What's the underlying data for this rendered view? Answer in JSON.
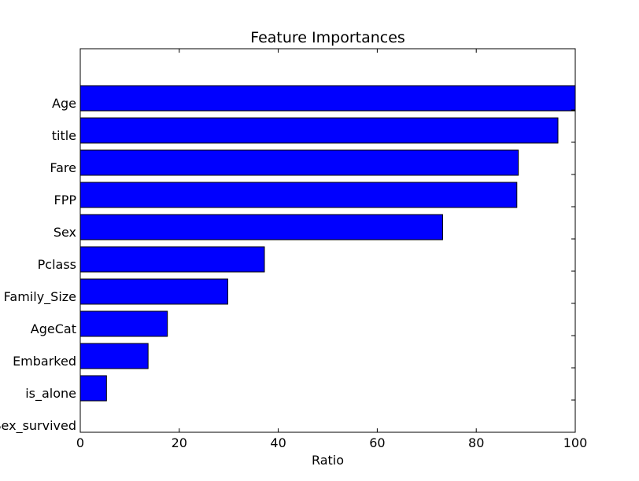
{
  "chart_data": {
    "type": "bar",
    "orientation": "horizontal",
    "title": "Feature Importances",
    "xlabel": "Ratio",
    "ylabel": "",
    "xlim": [
      0,
      100
    ],
    "xticks": [
      "0",
      "20",
      "40",
      "60",
      "80",
      "100"
    ],
    "categories": [
      "Age",
      "title",
      "Fare",
      "FPP",
      "Sex",
      "Pclass",
      "Family_Size",
      "AgeCat",
      "Embarked",
      "is_alone",
      "Sex_survived"
    ],
    "values": [
      100,
      96.5,
      88.5,
      88.2,
      73.2,
      37.2,
      29.8,
      17.6,
      13.7,
      5.3,
      0
    ],
    "bar_color": "#0000ff",
    "grid": false,
    "legend": "none"
  }
}
